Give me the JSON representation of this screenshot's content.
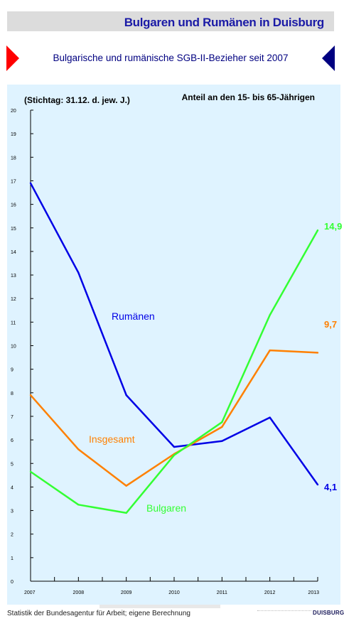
{
  "header": {
    "title": "Bulgaren und Rumänen in Duisburg"
  },
  "subtitle": "Bulgarische und rumänische SGB-II-Bezieher seit 2007",
  "chart_data": {
    "type": "line",
    "note_left": "(Stichtag:  31.12. d. jew. J.)",
    "note_right": "Anteil an den 15- bis 65-Jährigen",
    "x": [
      "2007",
      "2008",
      "2009",
      "2010",
      "2011",
      "2012",
      "2013"
    ],
    "ylim": [
      0,
      20
    ],
    "yticks": [
      "0",
      "1",
      "2",
      "3",
      "4",
      "5",
      "6",
      "7",
      "8",
      "9",
      "10",
      "11",
      "12",
      "13",
      "14",
      "15",
      "16",
      "17",
      "18",
      "19",
      "20"
    ],
    "series": [
      {
        "name": "Rumänen",
        "color": "#0000e6",
        "values": [
          16.9,
          13.1,
          7.9,
          5.7,
          5.95,
          6.95,
          4.1
        ],
        "end_label": "4,1"
      },
      {
        "name": "Insgesamt",
        "color": "#ff8000",
        "values": [
          7.9,
          5.6,
          4.05,
          5.4,
          6.55,
          9.8,
          9.7
        ],
        "end_label": "9,7"
      },
      {
        "name": "Bulgaren",
        "color": "#33ff33",
        "values": [
          4.65,
          3.25,
          2.9,
          5.35,
          6.75,
          11.3,
          14.9
        ],
        "end_label": "14,9"
      }
    ],
    "grid": false
  },
  "footer": {
    "source": "Statistik der Bundesagentur für Arbeit; eigene Berechnung",
    "logo": "DUISBURG"
  }
}
